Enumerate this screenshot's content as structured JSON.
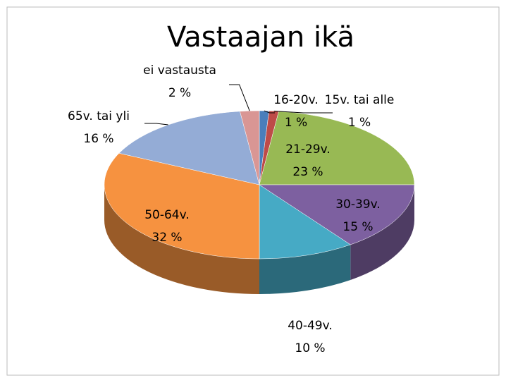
{
  "chart_data": {
    "type": "pie",
    "title": "Vastaajan ikä",
    "categories": [
      "16-20v.",
      "15v. tai alle",
      "21-29v.",
      "30-39v.",
      "40-49v.",
      "50-64v.",
      "65v. tai yli",
      "ei vastausta"
    ],
    "values": [
      1,
      1,
      23,
      15,
      10,
      32,
      16,
      2
    ],
    "value_labels": [
      "1 %",
      "1 %",
      "23 %",
      "15 %",
      "10 %",
      "32 %",
      "16 %",
      "2 %"
    ],
    "colors": [
      "#4a7ebb",
      "#be4b48",
      "#98b954",
      "#7d60a0",
      "#46aac5",
      "#f69240",
      "#94acd6",
      "#d99694"
    ]
  }
}
